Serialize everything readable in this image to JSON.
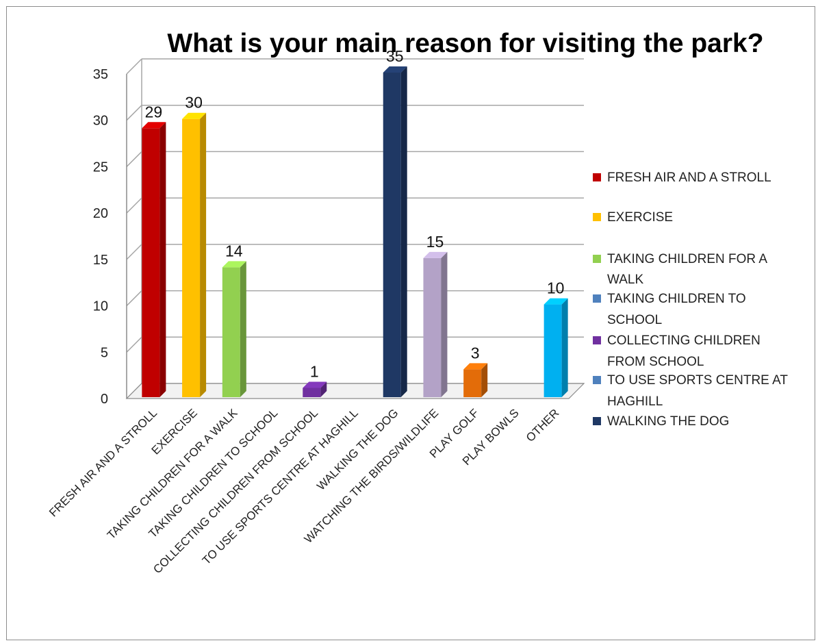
{
  "chart_data": {
    "type": "bar",
    "title": "What is your main reason for visiting the park?",
    "xlabel": "",
    "ylabel": "",
    "ylim": [
      0,
      35
    ],
    "yticks": [
      0,
      5,
      10,
      15,
      20,
      25,
      30,
      35
    ],
    "grid": true,
    "legend_position": "right",
    "categories": [
      "FRESH AIR AND A STROLL",
      "EXERCISE",
      "TAKING CHILDREN FOR A WALK",
      "TAKING CHILDREN TO SCHOOL",
      "COLLECTING CHILDREN FROM SCHOOL",
      "TO USE SPORTS CENTRE AT HAGHILL",
      "WALKING THE DOG",
      "WATCHING THE BIRDS/WILDLIFE",
      "PLAY GOLF",
      "PLAY BOWLS",
      "OTHER"
    ],
    "values": [
      29,
      30,
      14,
      0,
      1,
      0,
      35,
      15,
      3,
      0,
      10
    ],
    "data_labels": [
      "29",
      "30",
      "14",
      "",
      "1",
      "",
      "35",
      "15",
      "3",
      "",
      "10"
    ],
    "colors": [
      "#c00000",
      "#ffc000",
      "#92d050",
      "#4f81bd",
      "#7030a0",
      "#4f81bd",
      "#1f3864",
      "#b3a2c7",
      "#e36c09",
      "#4f81bd",
      "#00b0f0"
    ],
    "legend": [
      {
        "label": "FRESH AIR AND A STROLL",
        "color": "#c00000"
      },
      {
        "label": "EXERCISE",
        "color": "#ffc000"
      },
      {
        "label": "TAKING CHILDREN FOR A WALK",
        "color": "#92d050"
      },
      {
        "label": "TAKING CHILDREN TO SCHOOL",
        "color": "#4f81bd"
      },
      {
        "label": "COLLECTING CHILDREN FROM SCHOOL",
        "color": "#7030a0"
      },
      {
        "label": "TO USE SPORTS CENTRE AT HAGHILL",
        "color": "#4f81bd"
      },
      {
        "label": "WALKING THE DOG",
        "color": "#1f3864"
      }
    ]
  }
}
